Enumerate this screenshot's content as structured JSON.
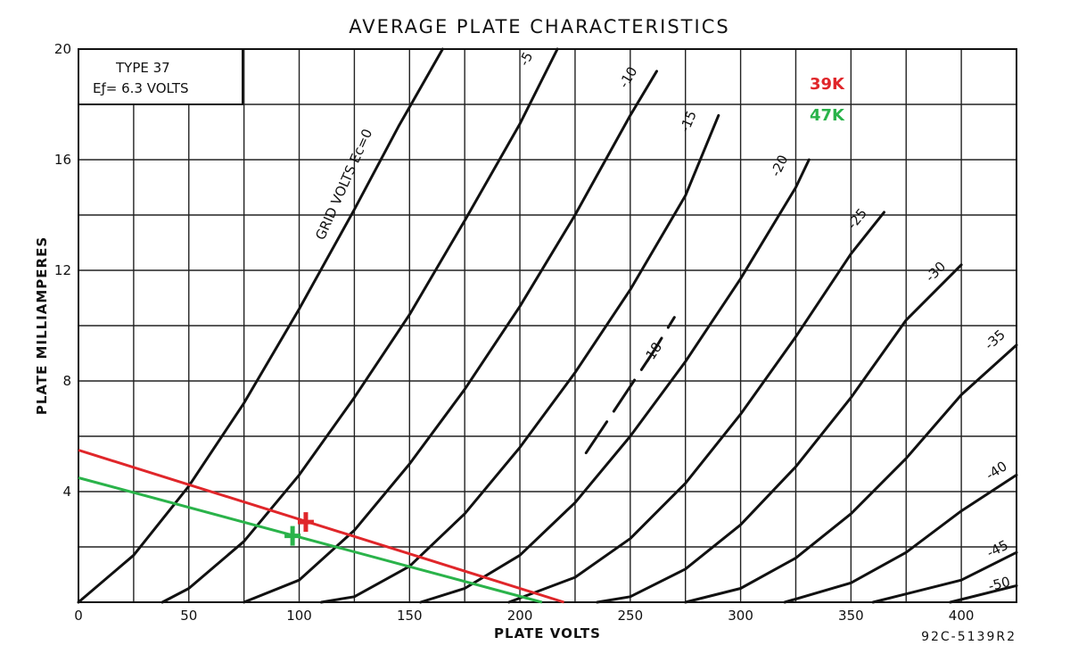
{
  "chart_data": {
    "type": "line",
    "title": "AVERAGE PLATE CHARACTERISTICS",
    "xlabel": "PLATE VOLTS",
    "ylabel": "PLATE MILLIAMPERES",
    "xlim": [
      0,
      425
    ],
    "ylim": [
      0,
      20
    ],
    "x_ticks": [
      0,
      50,
      100,
      150,
      200,
      250,
      300,
      350,
      400
    ],
    "y_ticks": [
      4,
      8,
      12,
      16,
      20
    ],
    "grid": true,
    "info_box": {
      "line1": "TYPE 37",
      "line2": "Eƒ= 6.3 VOLTS"
    },
    "grid_voltage_caption": "GRID VOLTS Ec=0",
    "figure_code": "92C-5139R2",
    "curves": [
      {
        "label": "",
        "points": [
          [
            0,
            0
          ],
          [
            25,
            1.7
          ],
          [
            50,
            4.2
          ],
          [
            75,
            7.2
          ],
          [
            100,
            10.6
          ],
          [
            125,
            14.2
          ],
          [
            145,
            17.2
          ],
          [
            165,
            20
          ]
        ]
      },
      {
        "label": "-5",
        "points": [
          [
            38,
            0
          ],
          [
            50,
            0.5
          ],
          [
            75,
            2.2
          ],
          [
            100,
            4.6
          ],
          [
            125,
            7.4
          ],
          [
            150,
            10.4
          ],
          [
            175,
            13.8
          ],
          [
            200,
            17.3
          ],
          [
            217,
            20
          ]
        ]
      },
      {
        "label": "-10",
        "points": [
          [
            75,
            0
          ],
          [
            100,
            0.8
          ],
          [
            125,
            2.6
          ],
          [
            150,
            5.0
          ],
          [
            175,
            7.7
          ],
          [
            200,
            10.7
          ],
          [
            225,
            14.0
          ],
          [
            250,
            17.6
          ],
          [
            262,
            19.2
          ]
        ]
      },
      {
        "label": "-15",
        "points": [
          [
            110,
            0
          ],
          [
            125,
            0.2
          ],
          [
            150,
            1.3
          ],
          [
            175,
            3.2
          ],
          [
            200,
            5.6
          ],
          [
            225,
            8.3
          ],
          [
            250,
            11.3
          ],
          [
            275,
            14.7
          ],
          [
            290,
            17.6
          ]
        ]
      },
      {
        "label": "-18",
        "points": [
          [
            230,
            5.4
          ],
          [
            240,
            6.6
          ],
          [
            250,
            7.8
          ],
          [
            260,
            9.0
          ],
          [
            270,
            10.3
          ]
        ]
      },
      {
        "label": "-20",
        "points": [
          [
            155,
            0
          ],
          [
            175,
            0.5
          ],
          [
            200,
            1.7
          ],
          [
            225,
            3.6
          ],
          [
            250,
            6.0
          ],
          [
            275,
            8.7
          ],
          [
            300,
            11.7
          ],
          [
            325,
            15.0
          ],
          [
            331,
            16.0
          ]
        ]
      },
      {
        "label": "-25",
        "points": [
          [
            195,
            0
          ],
          [
            225,
            0.9
          ],
          [
            250,
            2.3
          ],
          [
            275,
            4.3
          ],
          [
            300,
            6.8
          ],
          [
            325,
            9.6
          ],
          [
            350,
            12.6
          ],
          [
            365,
            14.1
          ]
        ]
      },
      {
        "label": "-30",
        "points": [
          [
            235,
            0
          ],
          [
            250,
            0.2
          ],
          [
            275,
            1.2
          ],
          [
            300,
            2.8
          ],
          [
            325,
            4.9
          ],
          [
            350,
            7.4
          ],
          [
            375,
            10.2
          ],
          [
            400,
            12.2
          ]
        ]
      },
      {
        "label": "-35",
        "points": [
          [
            275,
            0
          ],
          [
            300,
            0.5
          ],
          [
            325,
            1.6
          ],
          [
            350,
            3.2
          ],
          [
            375,
            5.2
          ],
          [
            400,
            7.5
          ],
          [
            425,
            9.3
          ]
        ]
      },
      {
        "label": "-40",
        "points": [
          [
            320,
            0
          ],
          [
            350,
            0.7
          ],
          [
            375,
            1.8
          ],
          [
            400,
            3.3
          ],
          [
            425,
            4.6
          ]
        ]
      },
      {
        "label": "-45",
        "points": [
          [
            360,
            0
          ],
          [
            400,
            0.8
          ],
          [
            425,
            1.8
          ]
        ]
      },
      {
        "label": "-50",
        "points": [
          [
            395,
            0
          ],
          [
            425,
            0.6
          ]
        ]
      }
    ],
    "load_lines": [
      {
        "name": "39K",
        "color": "#e0262a",
        "points": [
          [
            0,
            5.5
          ],
          [
            220,
            0
          ]
        ],
        "operating_point": [
          103,
          2.9
        ]
      },
      {
        "name": "47K",
        "color": "#2ab34a",
        "points": [
          [
            0,
            4.5
          ],
          [
            210,
            0
          ]
        ],
        "operating_point": [
          97,
          2.4
        ]
      }
    ]
  }
}
